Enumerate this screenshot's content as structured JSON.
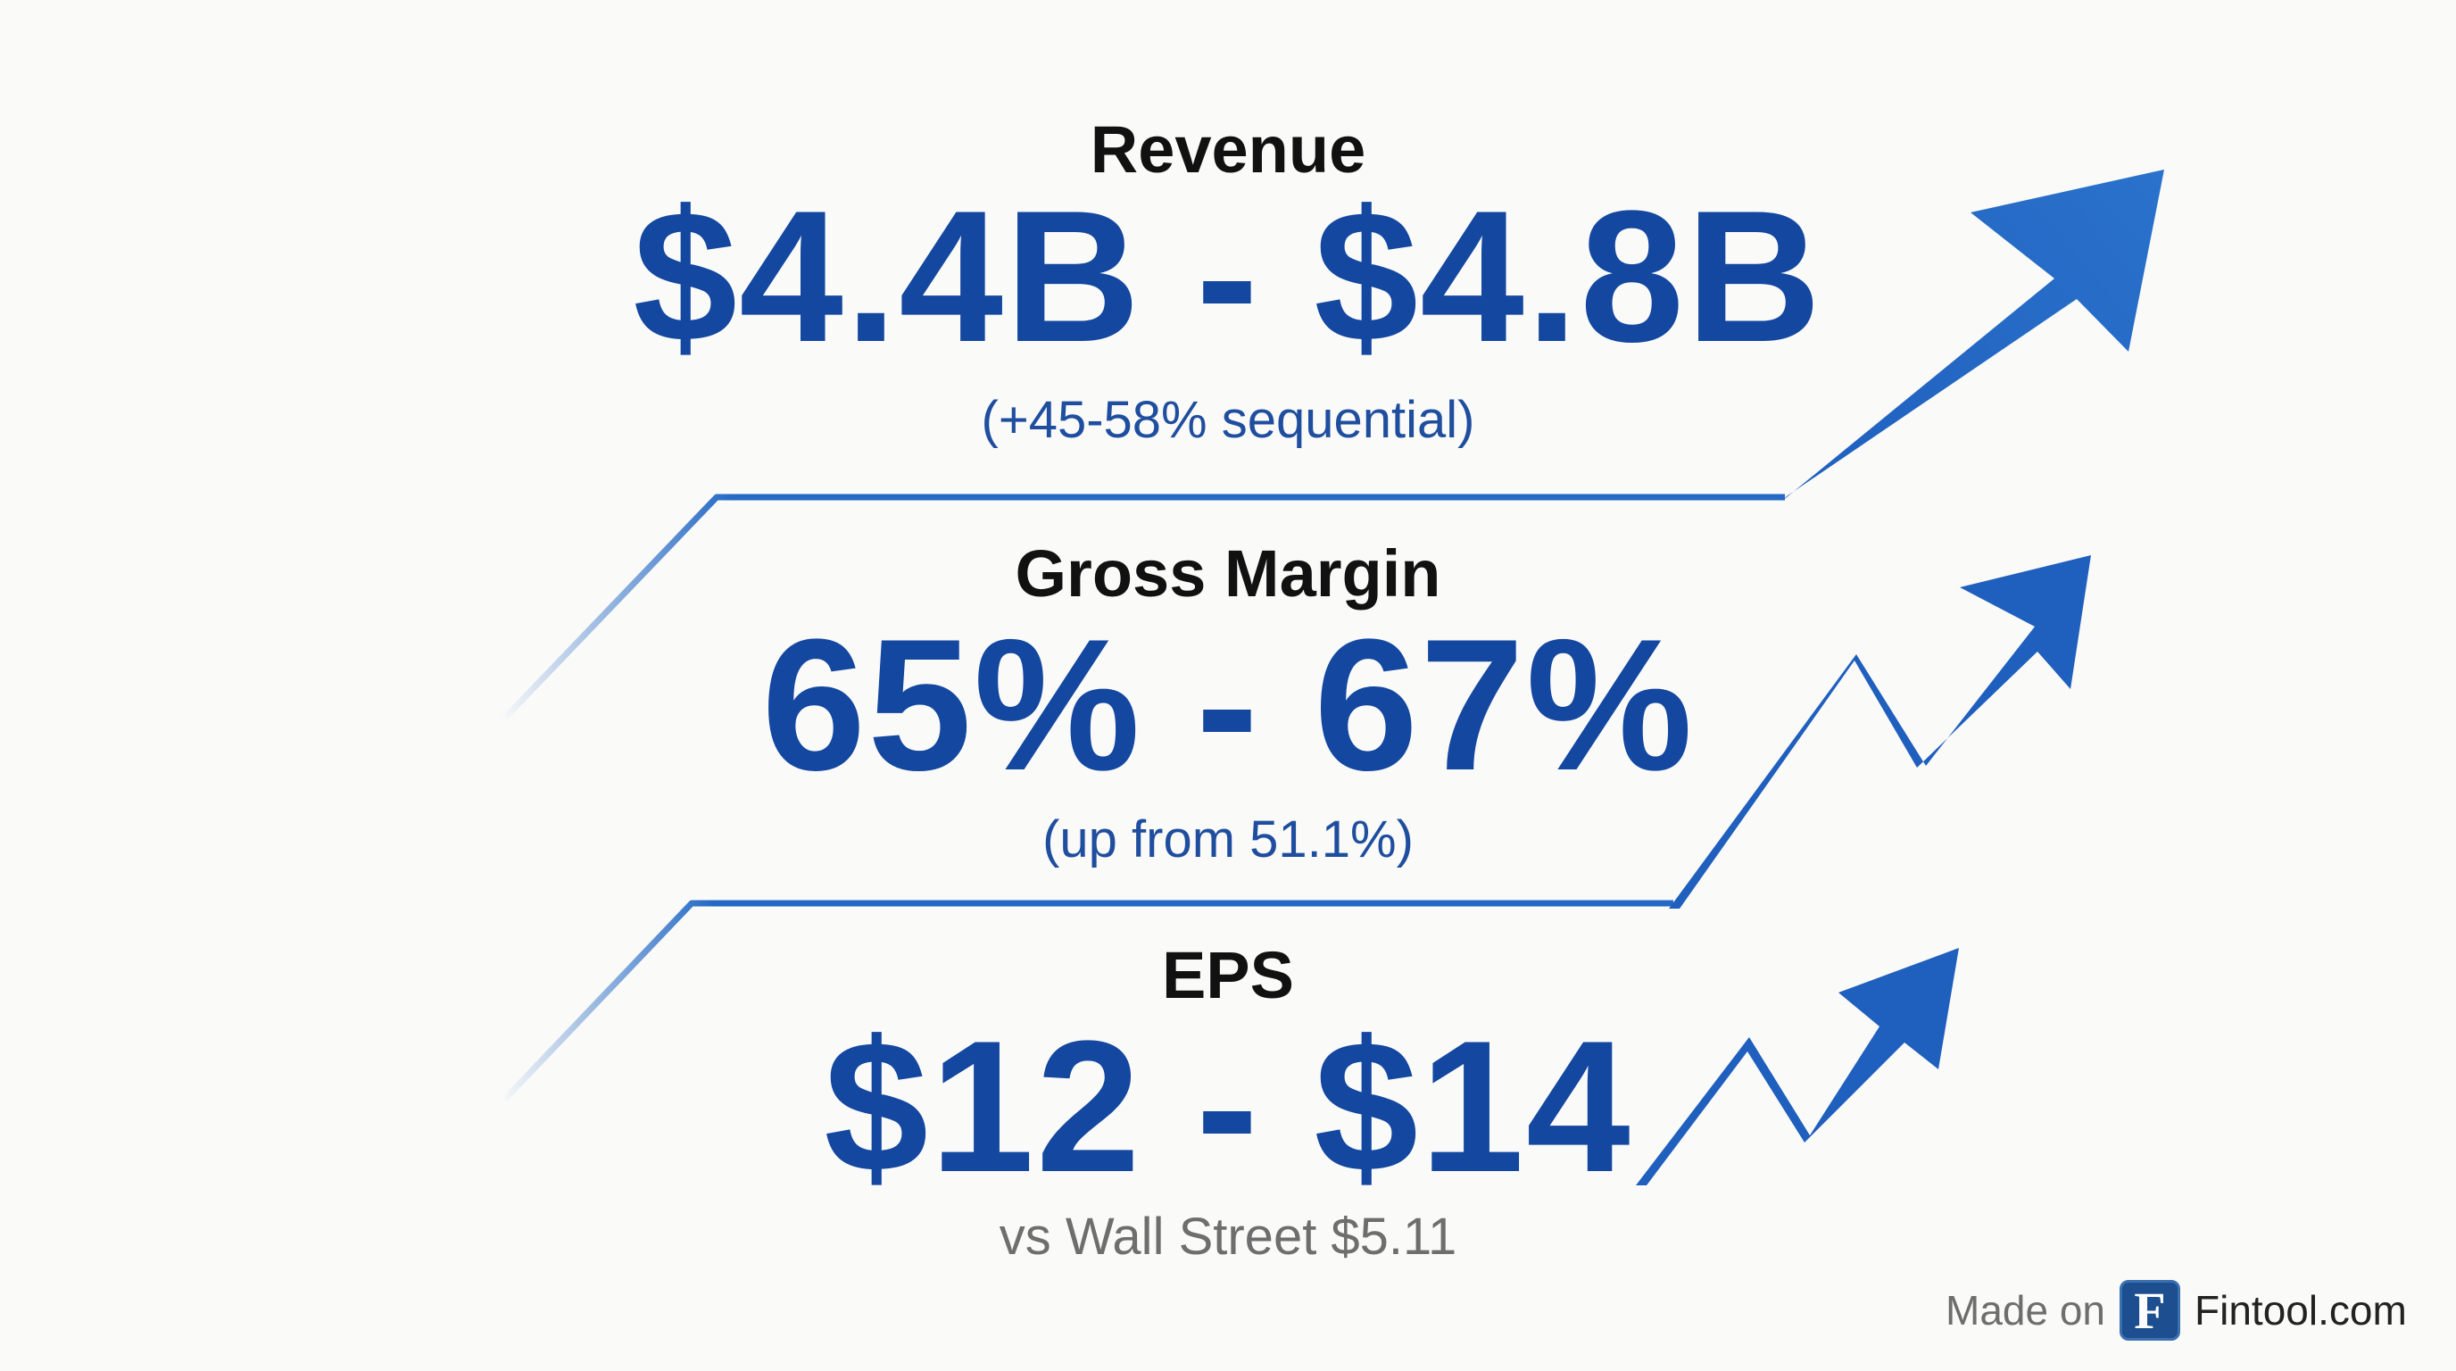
{
  "metrics": {
    "revenue": {
      "label": "Revenue",
      "value": "$4.4B - $4.8B",
      "note": "(+45-58% sequential)"
    },
    "gross_margin": {
      "label": "Gross Margin",
      "value": "65% - 67%",
      "note": "(up from 51.1%)"
    },
    "eps": {
      "label": "EPS",
      "value": "$12 - $14",
      "note": "vs Wall Street $5.11"
    }
  },
  "brand": {
    "prefix": "Made on",
    "logo_letter": "F",
    "name": "Fintool.com"
  },
  "colors": {
    "accent": "#1347a0",
    "arrow": "#2469c4",
    "background": "#fafaf9"
  },
  "icons": [
    "trend-up-arrow-icon",
    "zigzag-up-arrow-icon",
    "fintool-logo-icon"
  ]
}
